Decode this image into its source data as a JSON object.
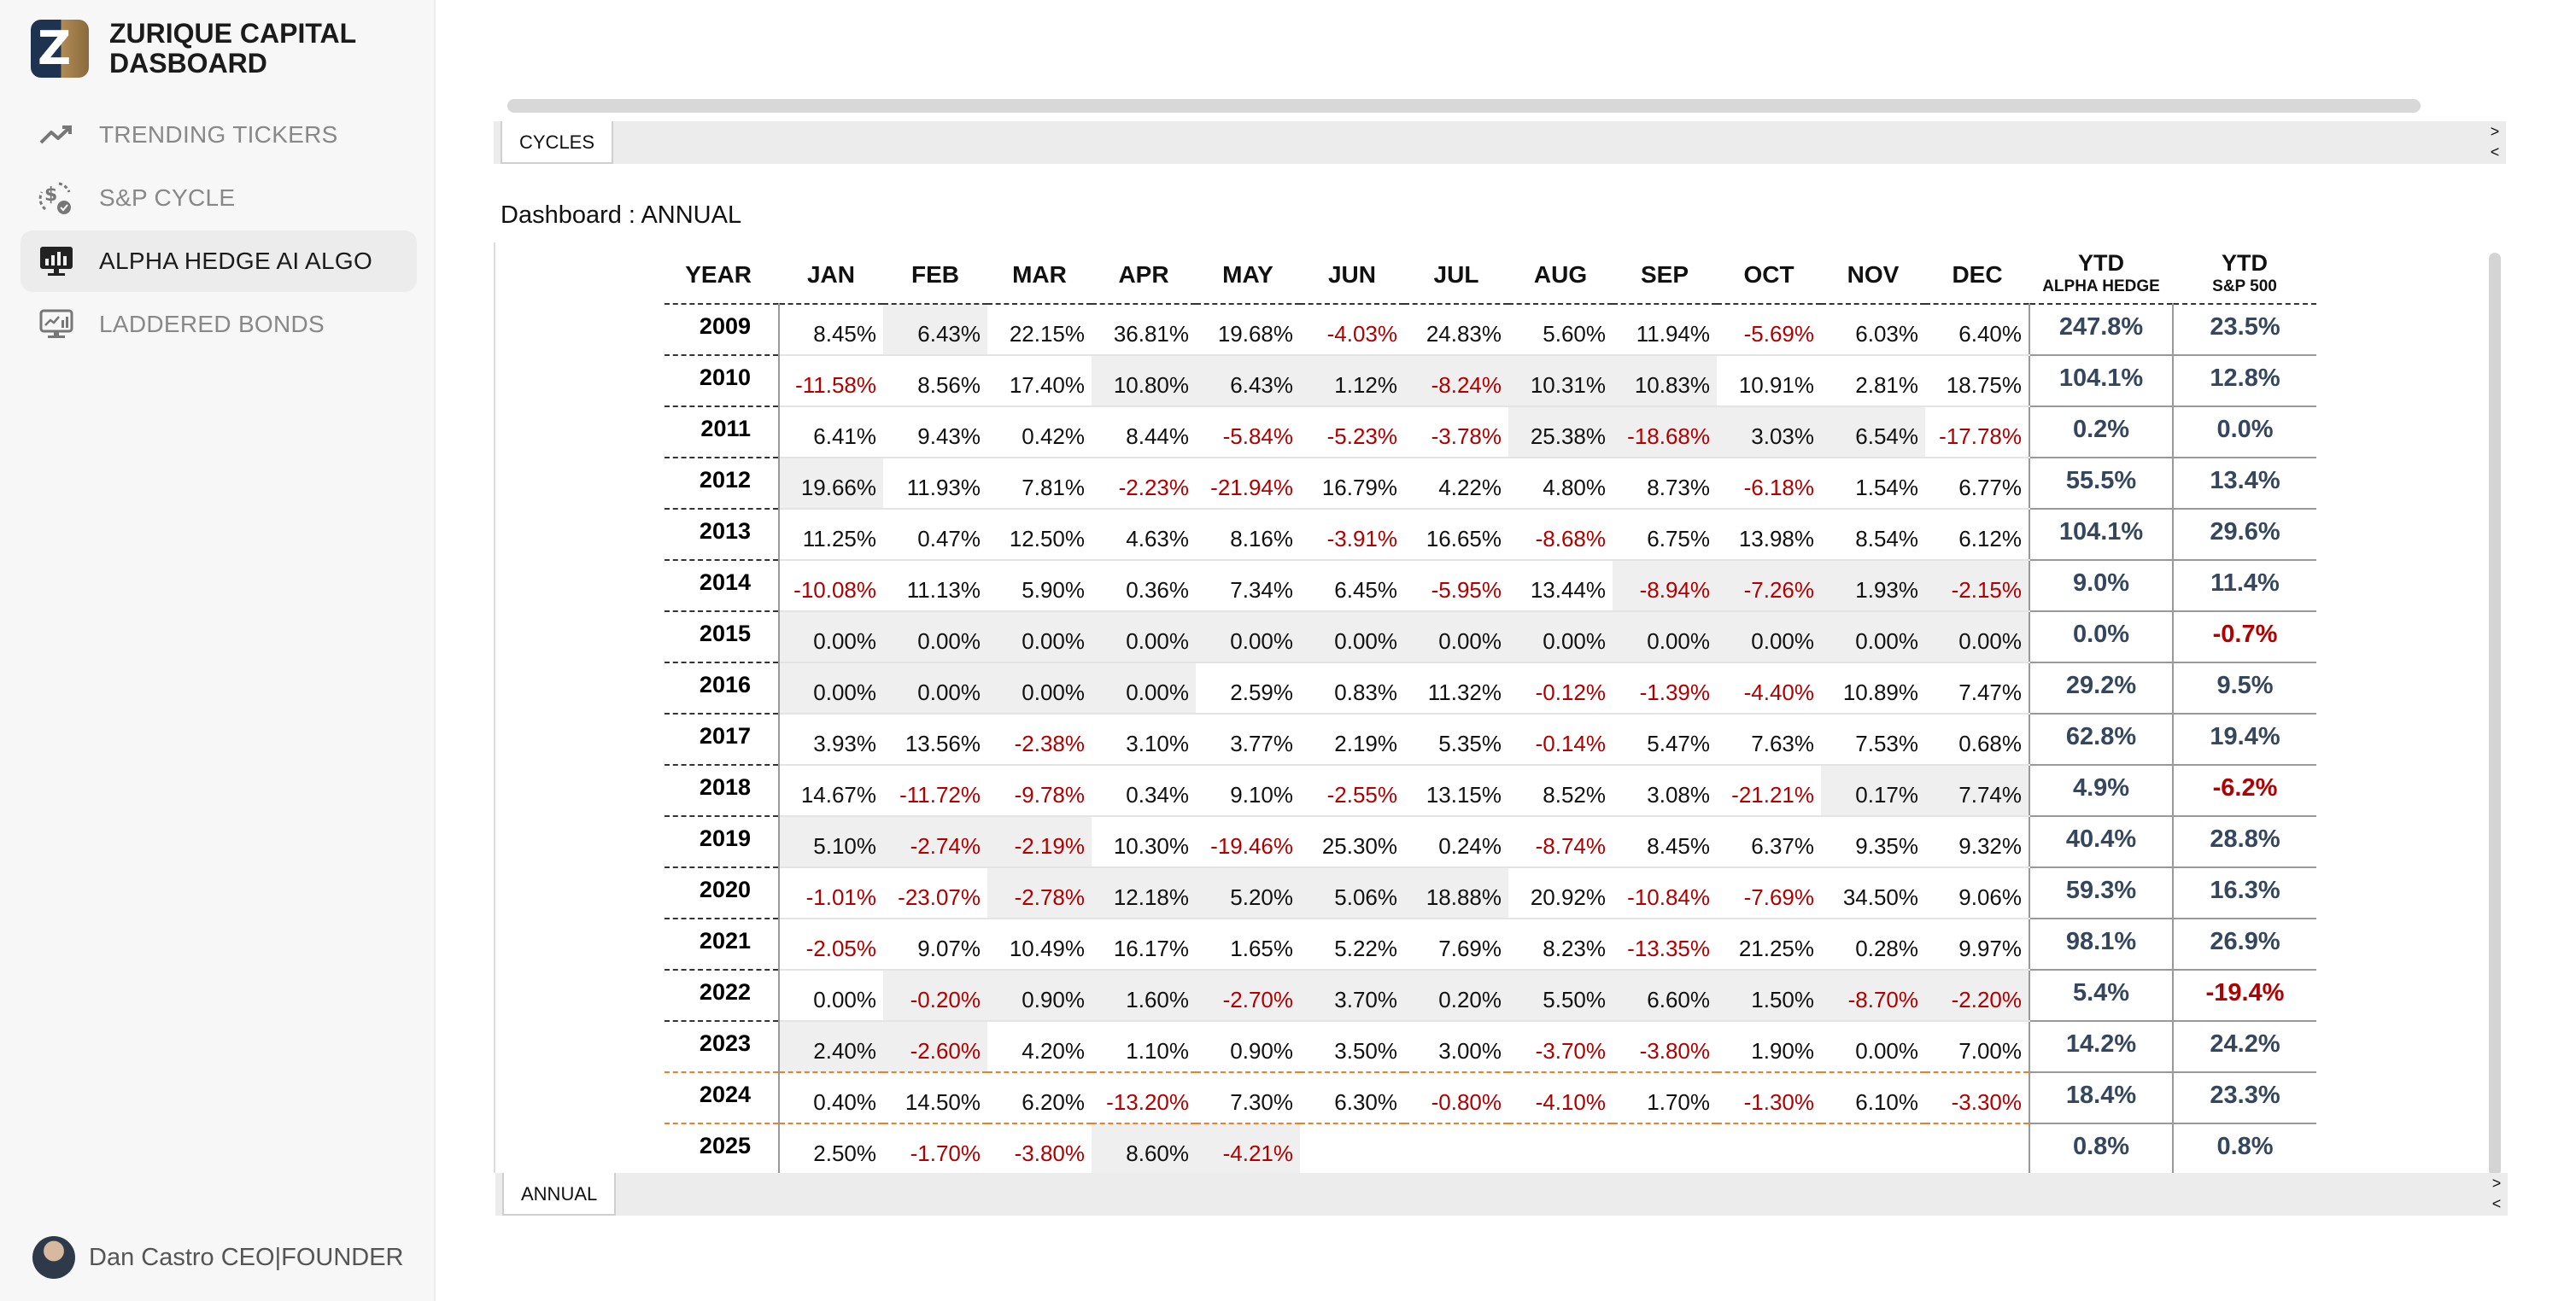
{
  "brand": {
    "line1": "ZURIQUE CAPITAL",
    "line2": "DASBOARD",
    "logo_letter": "Z"
  },
  "nav": [
    {
      "label": "TRENDING TICKERS",
      "icon": "trending-up-icon",
      "active": false
    },
    {
      "label": "S&P CYCLE",
      "icon": "dollar-cycle-icon",
      "active": false
    },
    {
      "label": "ALPHA HEDGE AI ALGO",
      "icon": "monitor-chart-icon",
      "active": true
    },
    {
      "label": "LADDERED BONDS",
      "icon": "monitor-bars-icon",
      "active": false
    }
  ],
  "profile": {
    "name": "Dan Castro CEO|FOUNDER"
  },
  "cycles": {
    "tab_label": "CYCLES",
    "arrow_right": ">",
    "arrow_left": "<"
  },
  "annual": {
    "title": "Dashboard : ANNUAL",
    "tab_label": "ANNUAL",
    "arrow_right": ">",
    "arrow_left": "<",
    "headers": {
      "year": "YEAR",
      "months": [
        "JAN",
        "FEB",
        "MAR",
        "APR",
        "MAY",
        "JUN",
        "JUL",
        "AUG",
        "SEP",
        "OCT",
        "NOV",
        "DEC"
      ],
      "ytd1_top": "YTD",
      "ytd1_sub": "ALPHA HEDGE",
      "ytd2_top": "YTD",
      "ytd2_sub": "S&P 500"
    },
    "rows": [
      {
        "year": "2009",
        "months": [
          "8.45%",
          "6.43%",
          "22.15%",
          "36.81%",
          "19.68%",
          "-4.03%",
          "24.83%",
          "5.60%",
          "11.94%",
          "-5.69%",
          "6.03%",
          "6.40%"
        ],
        "ytd_alpha": "247.8%",
        "ytd_sp": "23.5%"
      },
      {
        "year": "2010",
        "months": [
          "-11.58%",
          "8.56%",
          "17.40%",
          "10.80%",
          "6.43%",
          "1.12%",
          "-8.24%",
          "10.31%",
          "10.83%",
          "10.91%",
          "2.81%",
          "18.75%"
        ],
        "ytd_alpha": "104.1%",
        "ytd_sp": "12.8%"
      },
      {
        "year": "2011",
        "months": [
          "6.41%",
          "9.43%",
          "0.42%",
          "8.44%",
          "-5.84%",
          "-5.23%",
          "-3.78%",
          "25.38%",
          "-18.68%",
          "3.03%",
          "6.54%",
          "-17.78%"
        ],
        "ytd_alpha": "0.2%",
        "ytd_sp": "0.0%"
      },
      {
        "year": "2012",
        "months": [
          "19.66%",
          "11.93%",
          "7.81%",
          "-2.23%",
          "-21.94%",
          "16.79%",
          "4.22%",
          "4.80%",
          "8.73%",
          "-6.18%",
          "1.54%",
          "6.77%"
        ],
        "ytd_alpha": "55.5%",
        "ytd_sp": "13.4%"
      },
      {
        "year": "2013",
        "months": [
          "11.25%",
          "0.47%",
          "12.50%",
          "4.63%",
          "8.16%",
          "-3.91%",
          "16.65%",
          "-8.68%",
          "6.75%",
          "13.98%",
          "8.54%",
          "6.12%"
        ],
        "ytd_alpha": "104.1%",
        "ytd_sp": "29.6%"
      },
      {
        "year": "2014",
        "months": [
          "-10.08%",
          "11.13%",
          "5.90%",
          "0.36%",
          "7.34%",
          "6.45%",
          "-5.95%",
          "13.44%",
          "-8.94%",
          "-7.26%",
          "1.93%",
          "-2.15%"
        ],
        "ytd_alpha": "9.0%",
        "ytd_sp": "11.4%"
      },
      {
        "year": "2015",
        "months": [
          "0.00%",
          "0.00%",
          "0.00%",
          "0.00%",
          "0.00%",
          "0.00%",
          "0.00%",
          "0.00%",
          "0.00%",
          "0.00%",
          "0.00%",
          "0.00%"
        ],
        "ytd_alpha": "0.0%",
        "ytd_sp": "-0.7%"
      },
      {
        "year": "2016",
        "months": [
          "0.00%",
          "0.00%",
          "0.00%",
          "0.00%",
          "2.59%",
          "0.83%",
          "11.32%",
          "-0.12%",
          "-1.39%",
          "-4.40%",
          "10.89%",
          "7.47%"
        ],
        "ytd_alpha": "29.2%",
        "ytd_sp": "9.5%"
      },
      {
        "year": "2017",
        "months": [
          "3.93%",
          "13.56%",
          "-2.38%",
          "3.10%",
          "3.77%",
          "2.19%",
          "5.35%",
          "-0.14%",
          "5.47%",
          "7.63%",
          "7.53%",
          "0.68%"
        ],
        "ytd_alpha": "62.8%",
        "ytd_sp": "19.4%"
      },
      {
        "year": "2018",
        "months": [
          "14.67%",
          "-11.72%",
          "-9.78%",
          "0.34%",
          "9.10%",
          "-2.55%",
          "13.15%",
          "8.52%",
          "3.08%",
          "-21.21%",
          "0.17%",
          "7.74%"
        ],
        "ytd_alpha": "4.9%",
        "ytd_sp": "-6.2%"
      },
      {
        "year": "2019",
        "months": [
          "5.10%",
          "-2.74%",
          "-2.19%",
          "10.30%",
          "-19.46%",
          "25.30%",
          "0.24%",
          "-8.74%",
          "8.45%",
          "6.37%",
          "9.35%",
          "9.32%"
        ],
        "ytd_alpha": "40.4%",
        "ytd_sp": "28.8%"
      },
      {
        "year": "2020",
        "months": [
          "-1.01%",
          "-23.07%",
          "-2.78%",
          "12.18%",
          "5.20%",
          "5.06%",
          "18.88%",
          "20.92%",
          "-10.84%",
          "-7.69%",
          "34.50%",
          "9.06%"
        ],
        "ytd_alpha": "59.3%",
        "ytd_sp": "16.3%"
      },
      {
        "year": "2021",
        "months": [
          "-2.05%",
          "9.07%",
          "10.49%",
          "16.17%",
          "1.65%",
          "5.22%",
          "7.69%",
          "8.23%",
          "-13.35%",
          "21.25%",
          "0.28%",
          "9.97%"
        ],
        "ytd_alpha": "98.1%",
        "ytd_sp": "26.9%"
      },
      {
        "year": "2022",
        "months": [
          "0.00%",
          "-0.20%",
          "0.90%",
          "1.60%",
          "-2.70%",
          "3.70%",
          "0.20%",
          "5.50%",
          "6.60%",
          "1.50%",
          "-8.70%",
          "-2.20%"
        ],
        "ytd_alpha": "5.4%",
        "ytd_sp": "-19.4%"
      },
      {
        "year": "2023",
        "months": [
          "2.40%",
          "-2.60%",
          "4.20%",
          "1.10%",
          "0.90%",
          "3.50%",
          "3.00%",
          "-3.70%",
          "-3.80%",
          "1.90%",
          "0.00%",
          "7.00%"
        ],
        "ytd_alpha": "14.2%",
        "ytd_sp": "24.2%"
      },
      {
        "year": "2024",
        "months": [
          "0.40%",
          "14.50%",
          "6.20%",
          "-13.20%",
          "7.30%",
          "6.30%",
          "-0.80%",
          "-4.10%",
          "1.70%",
          "-1.30%",
          "6.10%",
          "-3.30%"
        ],
        "ytd_alpha": "18.4%",
        "ytd_sp": "23.3%"
      },
      {
        "year": "2025",
        "months": [
          "2.50%",
          "-1.70%",
          "-3.80%",
          "8.60%",
          "-4.21%",
          "",
          "",
          "",
          "",
          "",
          "",
          ""
        ],
        "ytd_alpha": "0.8%",
        "ytd_sp": "0.8%"
      }
    ]
  },
  "colors": {
    "negative": "#b00000",
    "ytd_text": "#34475f",
    "shade": "#efefef",
    "accent_orange": "#e8822a"
  }
}
